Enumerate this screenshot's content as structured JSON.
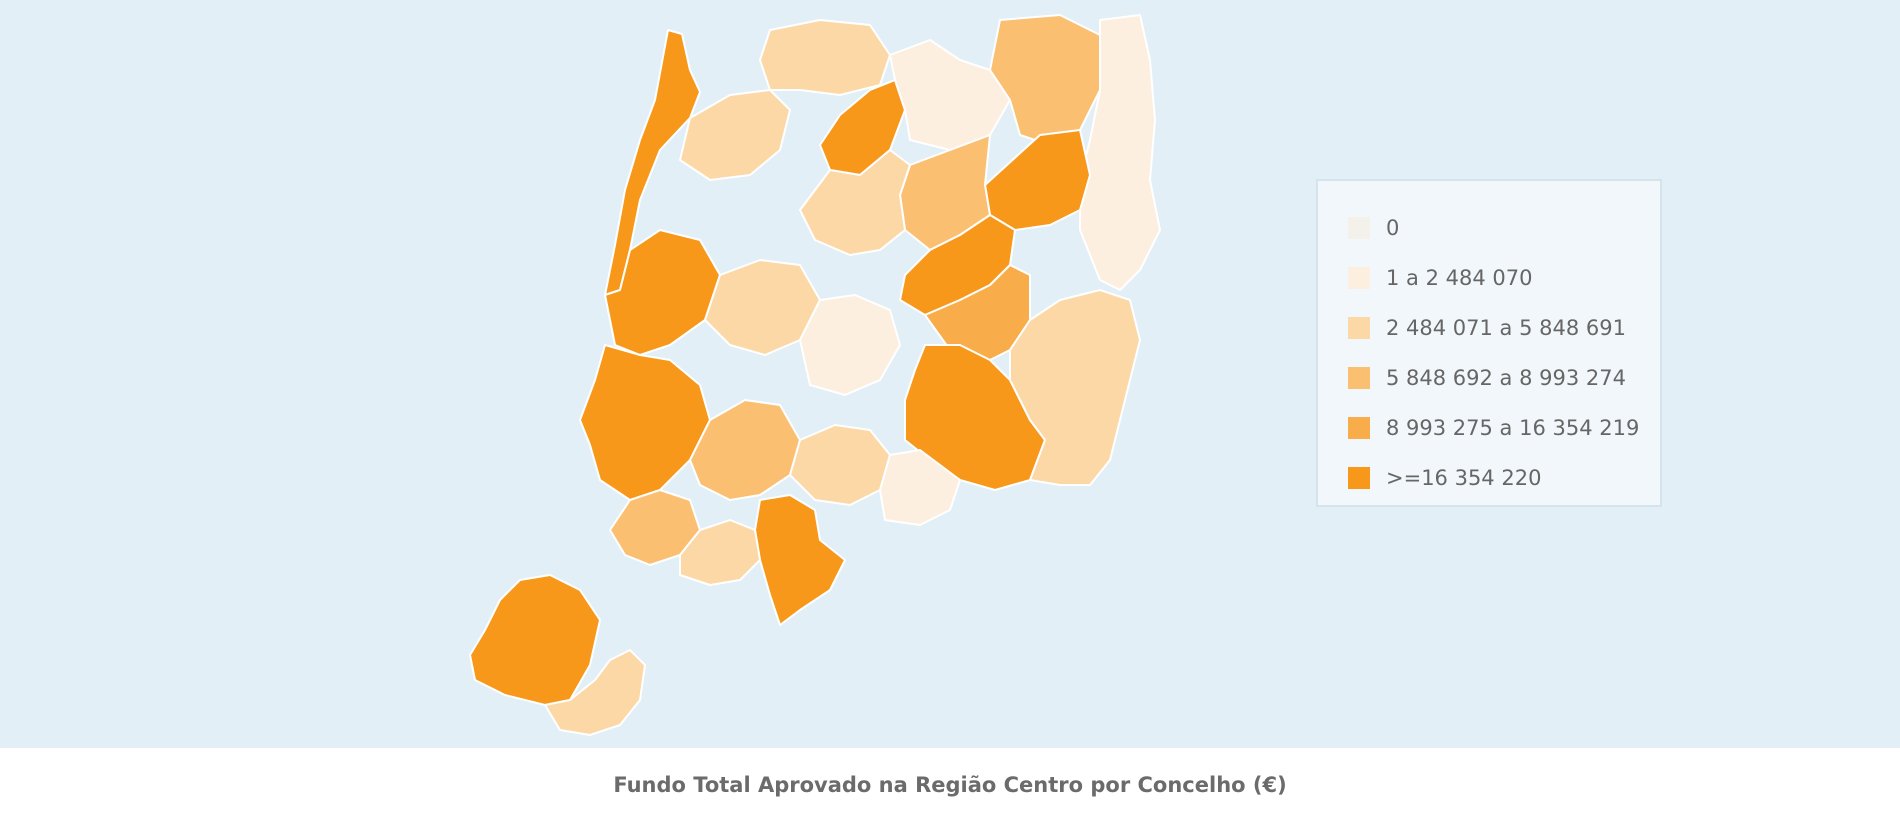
{
  "map": {
    "title": "Fundo Total Aprovado na Região Centro por Concelho (€)",
    "background_color": "#e2eff6",
    "border_color": "#ffffff"
  },
  "legend": {
    "items": [
      {
        "label": "0",
        "color": "#f4f1ea"
      },
      {
        "label": "1 a 2 484 070",
        "color": "#fdefe0"
      },
      {
        "label": "2 484 071 a 5 848 691",
        "color": "#fcd8a6"
      },
      {
        "label": "5 848 692 a 8 993 274",
        "color": "#fbbf72"
      },
      {
        "label": "8 993 275 a 16 354 219",
        "color": "#f9ac4a"
      },
      {
        "label": ">=16 354 220",
        "color": "#f7981b"
      }
    ]
  },
  "regions": [
    {
      "name": "concelho-northwest-coast",
      "class_index": 5
    },
    {
      "name": "concelho-north-1",
      "class_index": 2
    },
    {
      "name": "concelho-north-2",
      "class_index": 2
    },
    {
      "name": "concelho-north-center",
      "class_index": 5
    },
    {
      "name": "concelho-north-east-1",
      "class_index": 1
    },
    {
      "name": "concelho-north-east-2",
      "class_index": 3
    },
    {
      "name": "concelho-east-edge",
      "class_index": 1
    },
    {
      "name": "concelho-east-large",
      "class_index": 5
    },
    {
      "name": "concelho-central-1",
      "class_index": 3
    },
    {
      "name": "concelho-central-2",
      "class_index": 2
    },
    {
      "name": "concelho-central-band",
      "class_index": 5
    },
    {
      "name": "concelho-central-3",
      "class_index": 4
    },
    {
      "name": "concelho-coast-west",
      "class_index": 5
    },
    {
      "name": "concelho-interior-1",
      "class_index": 2
    },
    {
      "name": "concelho-interior-2",
      "class_index": 1
    },
    {
      "name": "concelho-castelo-branco",
      "class_index": 5
    },
    {
      "name": "concelho-idanha",
      "class_index": 2
    },
    {
      "name": "concelho-leiria-coast",
      "class_index": 5
    },
    {
      "name": "concelho-south-central-1",
      "class_index": 3
    },
    {
      "name": "concelho-south-central-2",
      "class_index": 2
    },
    {
      "name": "concelho-south-east-pair",
      "class_index": 1
    },
    {
      "name": "concelho-tomar-south",
      "class_index": 5
    },
    {
      "name": "concelho-oeste-1",
      "class_index": 3
    },
    {
      "name": "concelho-oeste-2",
      "class_index": 2
    },
    {
      "name": "concelho-torres-vedras",
      "class_index": 5
    },
    {
      "name": "concelho-south-tip",
      "class_index": 2
    }
  ]
}
